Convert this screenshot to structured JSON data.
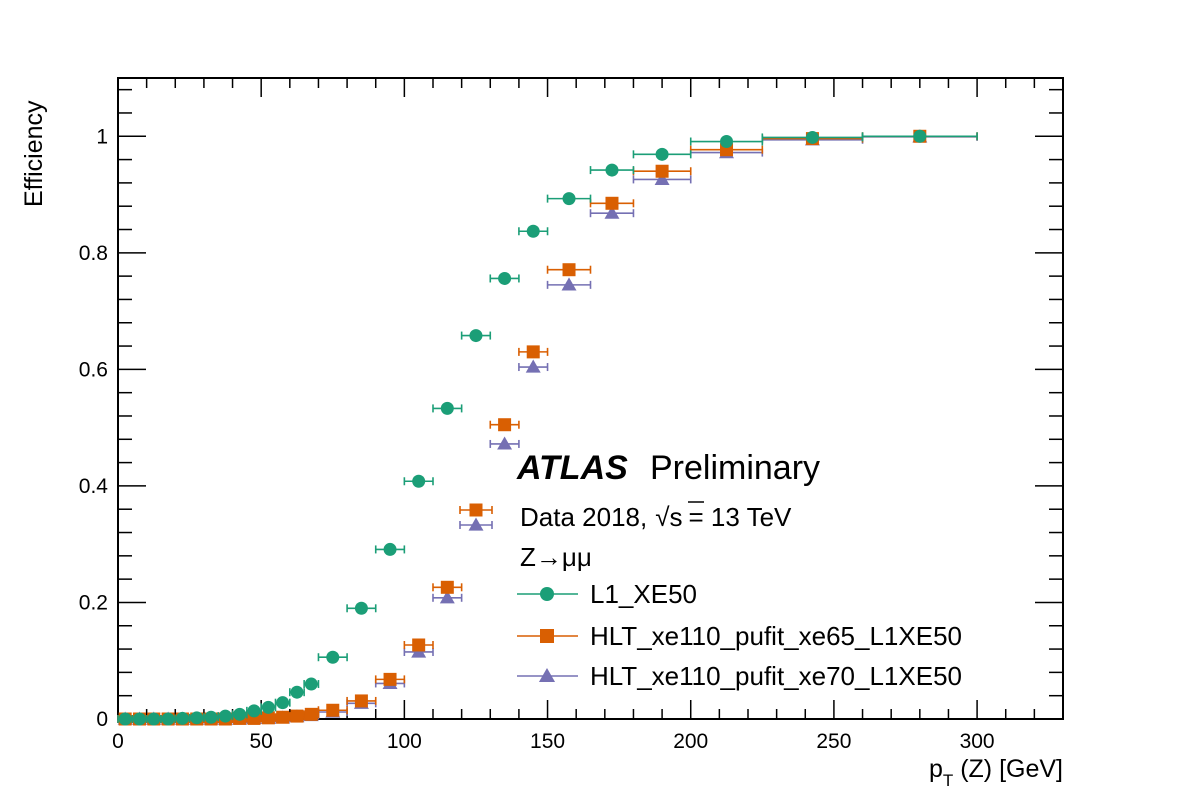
{
  "chart_data": {
    "type": "scatter",
    "title": "",
    "xlabel_main": "p",
    "xlabel_sub": "T",
    "xlabel_rest": " (Z) [GeV]",
    "ylabel": "Efficiency",
    "xlim": [
      0,
      330
    ],
    "ylim": [
      0,
      1.1
    ],
    "x_ticks": [
      0,
      50,
      100,
      150,
      200,
      250,
      300
    ],
    "x_tick_labels": [
      "0",
      "50",
      "100",
      "150",
      "200",
      "250",
      "300"
    ],
    "y_ticks": [
      0,
      0.2,
      0.4,
      0.6,
      0.8,
      1
    ],
    "y_tick_labels": [
      "0",
      "0.2",
      "0.4",
      "0.6",
      "0.8",
      "1"
    ],
    "grid": false,
    "legend_placement": "bottom-right",
    "annotations": {
      "atlas_label": "ATLAS",
      "atlas_sub": "Preliminary",
      "data_label": "Data 2018,",
      "sqrt_s_label": "√s",
      "energy_label": "= 13 TeV",
      "process_label": "Z→μμ"
    },
    "series": [
      {
        "name": "L1_XE50",
        "color": "#1b9e77",
        "marker": "circle",
        "points": [
          {
            "x": 2.5,
            "xerr": 2.5,
            "y": 0.0
          },
          {
            "x": 7.5,
            "xerr": 2.5,
            "y": 0.0
          },
          {
            "x": 12.5,
            "xerr": 2.5,
            "y": 0.0
          },
          {
            "x": 17.5,
            "xerr": 2.5,
            "y": 0.0
          },
          {
            "x": 22.5,
            "xerr": 2.5,
            "y": 0.001
          },
          {
            "x": 27.5,
            "xerr": 2.5,
            "y": 0.002
          },
          {
            "x": 32.5,
            "xerr": 2.5,
            "y": 0.003
          },
          {
            "x": 37.5,
            "xerr": 2.5,
            "y": 0.005
          },
          {
            "x": 42.5,
            "xerr": 2.5,
            "y": 0.008
          },
          {
            "x": 47.5,
            "xerr": 2.5,
            "y": 0.014
          },
          {
            "x": 52.5,
            "xerr": 2.5,
            "y": 0.02
          },
          {
            "x": 57.5,
            "xerr": 2.5,
            "y": 0.028
          },
          {
            "x": 62.5,
            "xerr": 2.5,
            "y": 0.046
          },
          {
            "x": 67.5,
            "xerr": 2.5,
            "y": 0.06
          },
          {
            "x": 75,
            "xerr": 5,
            "y": 0.106
          },
          {
            "x": 85,
            "xerr": 5,
            "y": 0.19
          },
          {
            "x": 95,
            "xerr": 5,
            "y": 0.291
          },
          {
            "x": 105,
            "xerr": 5,
            "y": 0.408
          },
          {
            "x": 115,
            "xerr": 5,
            "y": 0.533
          },
          {
            "x": 125,
            "xerr": 5,
            "y": 0.658
          },
          {
            "x": 135,
            "xerr": 5,
            "y": 0.756
          },
          {
            "x": 145,
            "xerr": 5,
            "y": 0.837
          },
          {
            "x": 157.5,
            "xerr": 7.5,
            "y": 0.893
          },
          {
            "x": 172.5,
            "xerr": 7.5,
            "y": 0.942
          },
          {
            "x": 190,
            "xerr": 10,
            "y": 0.969
          },
          {
            "x": 212.5,
            "xerr": 12.5,
            "y": 0.991
          },
          {
            "x": 242.5,
            "xerr": 17.5,
            "y": 0.998
          },
          {
            "x": 280,
            "xerr": 20,
            "y": 1.0
          }
        ]
      },
      {
        "name": "HLT_xe110_pufit_xe65_L1XE50",
        "color": "#d95f02",
        "marker": "square",
        "points": [
          {
            "x": 2.5,
            "xerr": 2.5,
            "y": 0.0
          },
          {
            "x": 7.5,
            "xerr": 2.5,
            "y": 0.0
          },
          {
            "x": 12.5,
            "xerr": 2.5,
            "y": 0.0
          },
          {
            "x": 17.5,
            "xerr": 2.5,
            "y": 0.0
          },
          {
            "x": 22.5,
            "xerr": 2.5,
            "y": 0.0
          },
          {
            "x": 27.5,
            "xerr": 2.5,
            "y": 0.0
          },
          {
            "x": 32.5,
            "xerr": 2.5,
            "y": 0.0
          },
          {
            "x": 37.5,
            "xerr": 2.5,
            "y": 0.0
          },
          {
            "x": 42.5,
            "xerr": 2.5,
            "y": 0.001
          },
          {
            "x": 47.5,
            "xerr": 2.5,
            "y": 0.001
          },
          {
            "x": 52.5,
            "xerr": 2.5,
            "y": 0.002
          },
          {
            "x": 57.5,
            "xerr": 2.5,
            "y": 0.003
          },
          {
            "x": 62.5,
            "xerr": 2.5,
            "y": 0.005
          },
          {
            "x": 67.5,
            "xerr": 2.5,
            "y": 0.008
          },
          {
            "x": 75,
            "xerr": 5,
            "y": 0.015
          },
          {
            "x": 85,
            "xerr": 5,
            "y": 0.031
          },
          {
            "x": 95,
            "xerr": 5,
            "y": 0.068
          },
          {
            "x": 105,
            "xerr": 5,
            "y": 0.127
          },
          {
            "x": 115,
            "xerr": 5,
            "y": 0.226
          },
          {
            "x": 135,
            "xerr": 5,
            "y": 0.505
          },
          {
            "x": 145,
            "xerr": 5,
            "y": 0.63
          },
          {
            "x": 157.5,
            "xerr": 7.5,
            "y": 0.771
          },
          {
            "x": 172.5,
            "xerr": 7.5,
            "y": 0.885
          },
          {
            "x": 190,
            "xerr": 10,
            "y": 0.94
          },
          {
            "x": 212.5,
            "xerr": 12.5,
            "y": 0.977
          },
          {
            "x": 242.5,
            "xerr": 17.5,
            "y": 0.996
          },
          {
            "x": 280,
            "xerr": 20,
            "y": 1.0
          }
        ]
      },
      {
        "name": "HLT_xe110_pufit_xe70_L1XE50",
        "color": "#7570b3",
        "marker": "triangle",
        "points": [
          {
            "x": 2.5,
            "xerr": 2.5,
            "y": 0.0
          },
          {
            "x": 7.5,
            "xerr": 2.5,
            "y": 0.0
          },
          {
            "x": 12.5,
            "xerr": 2.5,
            "y": 0.0
          },
          {
            "x": 17.5,
            "xerr": 2.5,
            "y": 0.0
          },
          {
            "x": 22.5,
            "xerr": 2.5,
            "y": 0.0
          },
          {
            "x": 27.5,
            "xerr": 2.5,
            "y": 0.0
          },
          {
            "x": 32.5,
            "xerr": 2.5,
            "y": 0.0
          },
          {
            "x": 37.5,
            "xerr": 2.5,
            "y": 0.0
          },
          {
            "x": 42.5,
            "xerr": 2.5,
            "y": 0.0
          },
          {
            "x": 47.5,
            "xerr": 2.5,
            "y": 0.001
          },
          {
            "x": 52.5,
            "xerr": 2.5,
            "y": 0.001
          },
          {
            "x": 57.5,
            "xerr": 2.5,
            "y": 0.002
          },
          {
            "x": 62.5,
            "xerr": 2.5,
            "y": 0.004
          },
          {
            "x": 67.5,
            "xerr": 2.5,
            "y": 0.006
          },
          {
            "x": 75,
            "xerr": 5,
            "y": 0.012
          },
          {
            "x": 85,
            "xerr": 5,
            "y": 0.027
          },
          {
            "x": 95,
            "xerr": 5,
            "y": 0.061
          },
          {
            "x": 105,
            "xerr": 5,
            "y": 0.115
          },
          {
            "x": 115,
            "xerr": 5,
            "y": 0.208
          },
          {
            "x": 135,
            "xerr": 5,
            "y": 0.472
          },
          {
            "x": 145,
            "xerr": 5,
            "y": 0.604
          },
          {
            "x": 157.5,
            "xerr": 7.5,
            "y": 0.745
          },
          {
            "x": 172.5,
            "xerr": 7.5,
            "y": 0.868
          },
          {
            "x": 190,
            "xerr": 10,
            "y": 0.926
          },
          {
            "x": 212.5,
            "xerr": 12.5,
            "y": 0.972
          },
          {
            "x": 242.5,
            "xerr": 17.5,
            "y": 0.994
          },
          {
            "x": 280,
            "xerr": 20,
            "y": 0.999
          }
        ]
      }
    ]
  }
}
